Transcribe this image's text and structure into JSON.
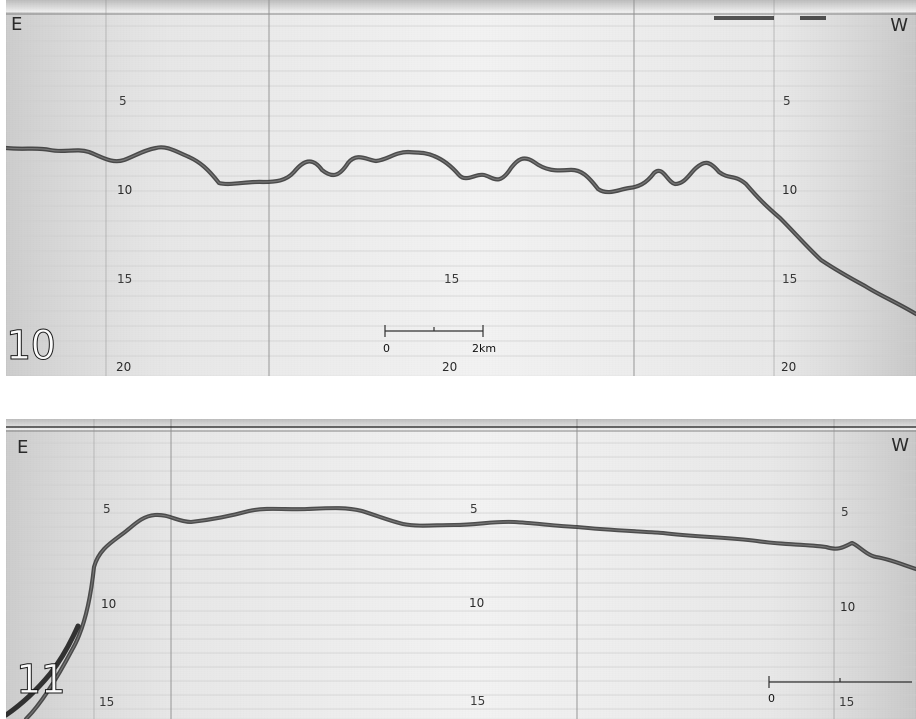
{
  "panels": [
    {
      "figure_number": "10",
      "east_label": "E",
      "west_label": "W",
      "depth_labels": {
        "left": [
          "5",
          "10",
          "15",
          "20"
        ],
        "center": [
          "15",
          "20"
        ],
        "right": [
          "5",
          "10",
          "15",
          "20"
        ]
      },
      "scale_bar": {
        "start_label": "0",
        "end_label": "2km"
      }
    },
    {
      "figure_number": "11",
      "east_label": "E",
      "west_label": "W",
      "depth_labels": {
        "left": [
          "5",
          "10",
          "15"
        ],
        "center": [
          "5",
          "10",
          "15"
        ],
        "right": [
          "5",
          "10",
          "15"
        ]
      },
      "scale_bar": {
        "start_label": "0"
      }
    }
  ]
}
